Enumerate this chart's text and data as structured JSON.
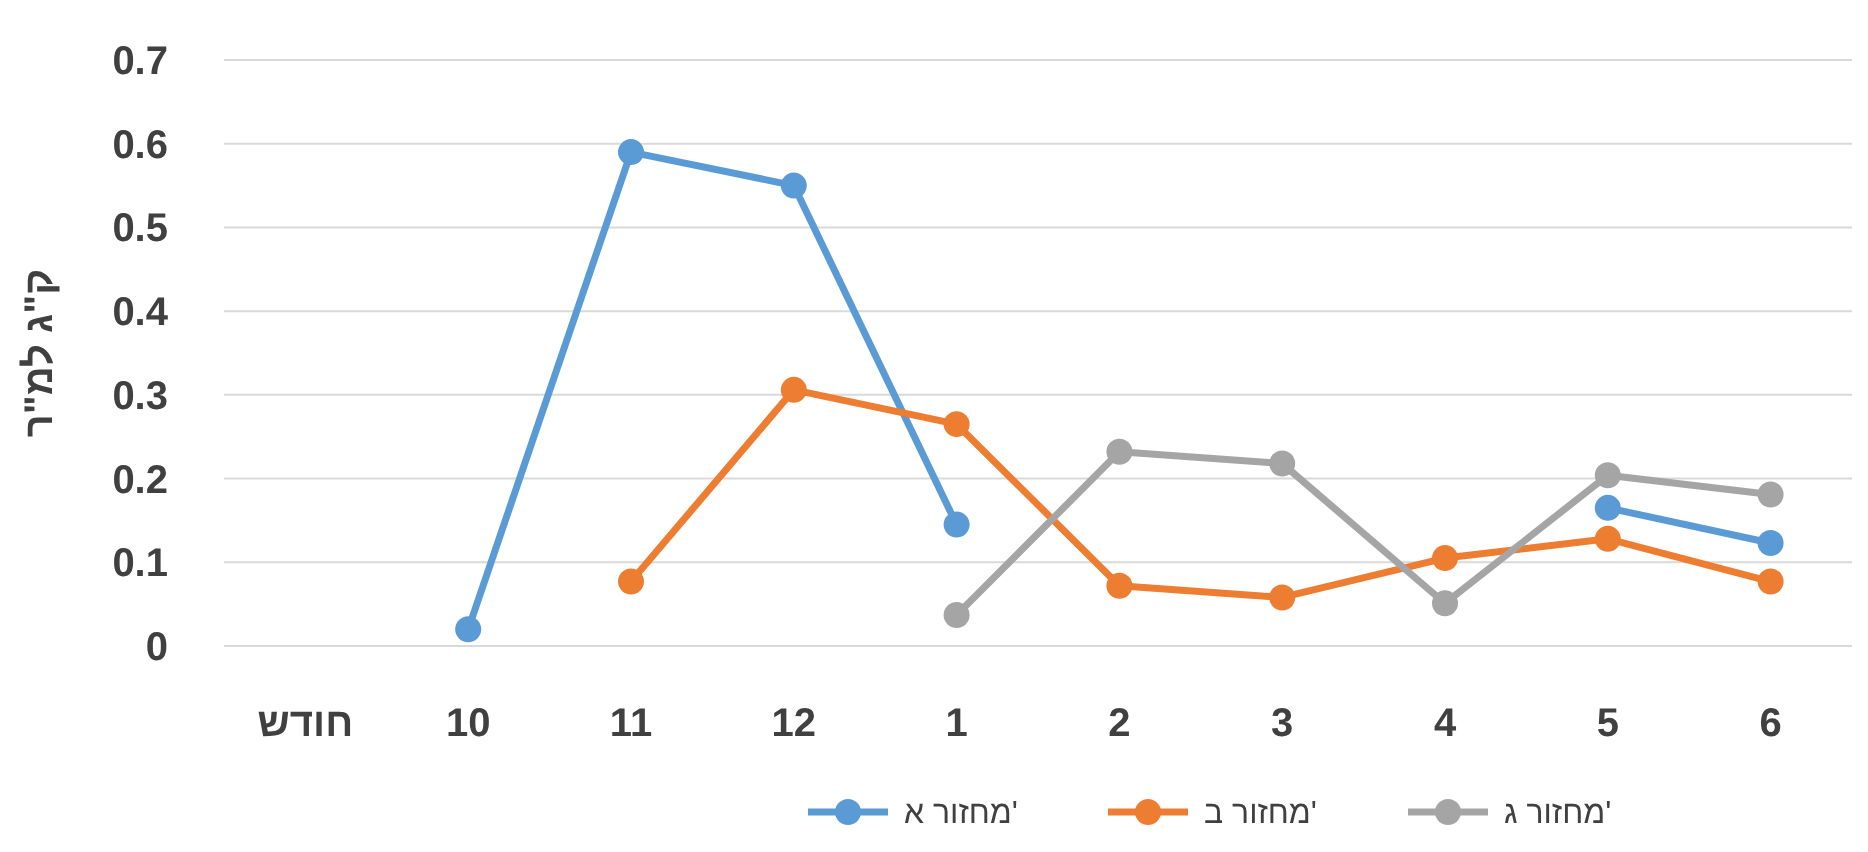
{
  "chart_data": {
    "type": "line",
    "ylabel": "ק\"ג למ\"ר",
    "categories": [
      "חודש",
      "10",
      "11",
      "12",
      "1",
      "2",
      "3",
      "4",
      "5",
      "6"
    ],
    "series": [
      {
        "name": "מחזור א'",
        "color": "#5b9bd5",
        "values": [
          null,
          0.02,
          0.59,
          0.55,
          0.145,
          null,
          null,
          null,
          0.165,
          0.123
        ]
      },
      {
        "name": "מחזור ב'",
        "color": "#ed7d31",
        "values": [
          null,
          null,
          0.077,
          0.306,
          0.265,
          0.072,
          0.058,
          0.105,
          0.128,
          0.077
        ]
      },
      {
        "name": "מחזור ג'",
        "color": "#a5a5a5",
        "values": [
          null,
          null,
          null,
          null,
          0.037,
          0.232,
          0.218,
          0.051,
          0.204,
          0.181
        ]
      }
    ],
    "ylim": [
      0,
      0.7
    ],
    "yticks": [
      0,
      0.1,
      0.2,
      0.3,
      0.4,
      0.5,
      0.6,
      0.7
    ],
    "grid": "y",
    "legend": "bottom",
    "marker": "circle",
    "line_style": "solid"
  }
}
